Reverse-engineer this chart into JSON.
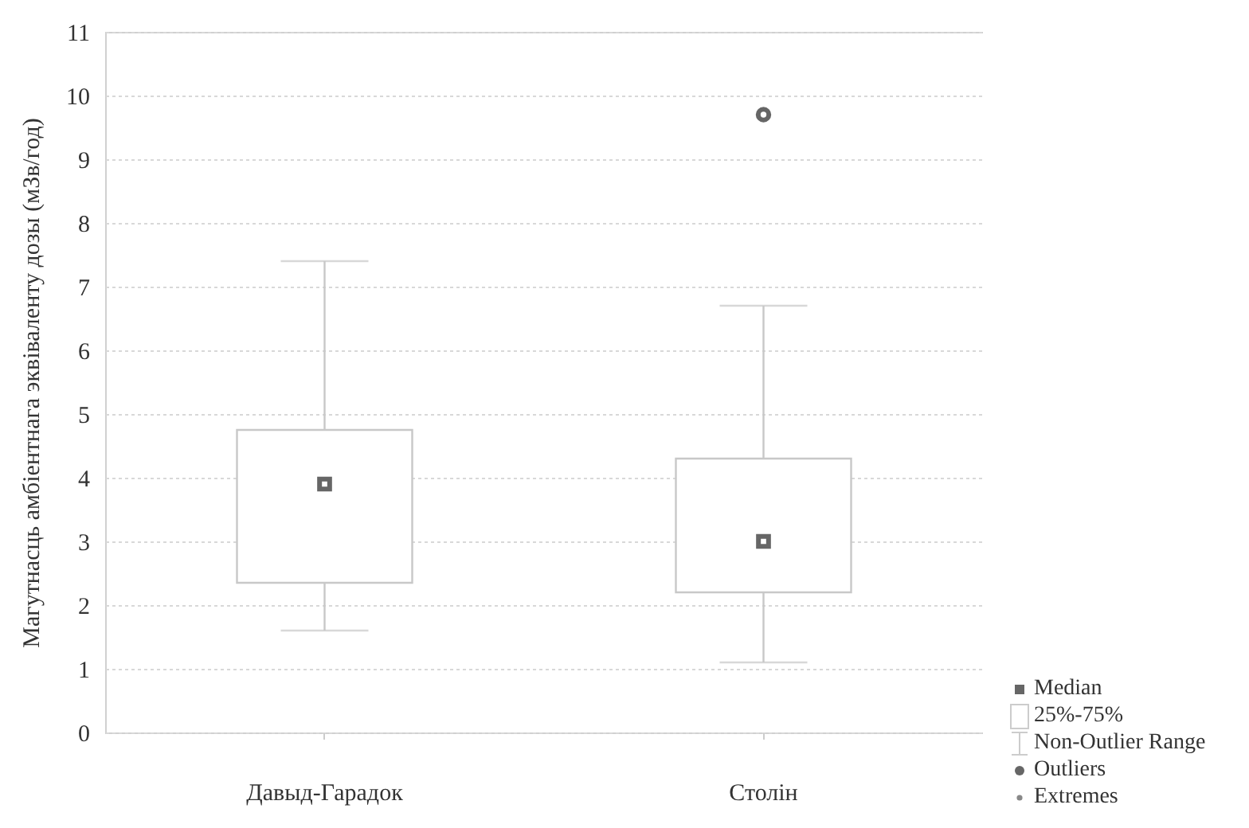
{
  "chart_data": {
    "type": "box",
    "ylabel": "Магутнасць амбіентнага эквіваленту дозы (мЗв/год)",
    "categories": [
      "Давыд-Гарадок",
      "Столін"
    ],
    "boxes": [
      {
        "low": 1.6,
        "q1": 2.35,
        "median": 3.9,
        "q3": 4.75,
        "high": 7.4
      },
      {
        "low": 1.1,
        "q1": 2.2,
        "median": 3.0,
        "q3": 4.3,
        "high": 6.7,
        "outliers": [
          9.7
        ]
      }
    ],
    "ylim": [
      0,
      11
    ],
    "yticks": [
      0,
      1,
      2,
      3,
      4,
      5,
      6,
      7,
      8,
      9,
      10,
      11
    ],
    "grid": "y",
    "annotations": [
      "Median",
      "25%-75%",
      "Non-Outlier Range",
      "Outliers",
      "Extremes"
    ]
  }
}
